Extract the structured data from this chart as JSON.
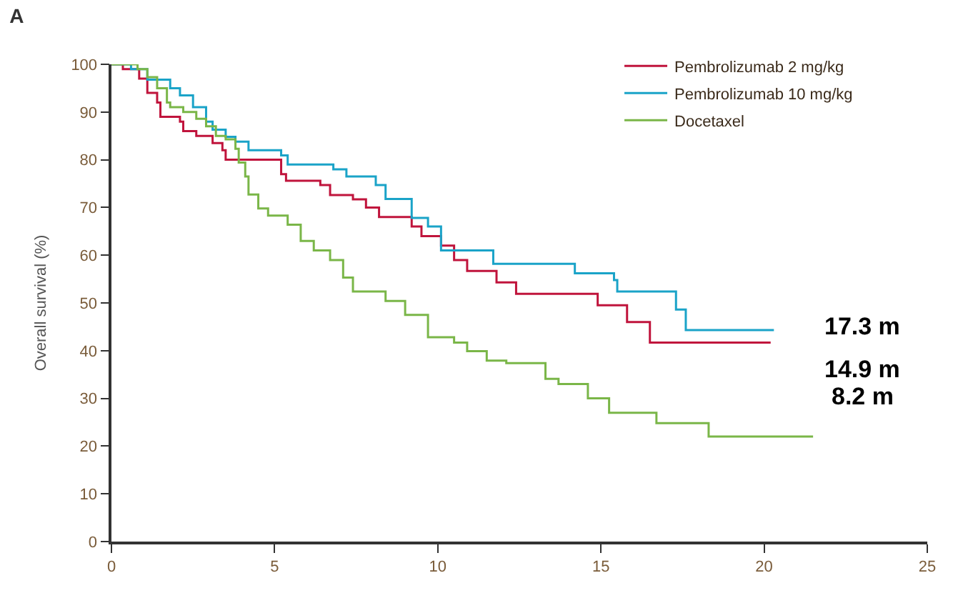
{
  "chart_data": {
    "type": "step",
    "title": "A",
    "ylabel": "Overall survival (%)",
    "xlim": [
      0,
      25
    ],
    "xticks": [
      0,
      5,
      10,
      15,
      20,
      25
    ],
    "ylim": [
      0,
      100
    ],
    "yticks": [
      0,
      10,
      20,
      30,
      40,
      50,
      60,
      70,
      80,
      90,
      100
    ],
    "legend": "top right",
    "marker": "none",
    "line_style": "solid",
    "series": [
      {
        "name": "Pembrolizumab 2 mg/kg",
        "color": "#c0143c",
        "x": [
          0,
          0.35,
          0.85,
          1.1,
          1.4,
          1.5,
          2.1,
          2.2,
          2.6,
          3.1,
          3.4,
          3.5,
          5.2,
          5.35,
          6.4,
          6.7,
          7.4,
          7.8,
          8.2,
          9.2,
          9.5,
          10.1,
          10.5,
          10.9,
          11.8,
          12.4,
          14.9,
          15.8,
          16.5,
          20.2
        ],
        "values": [
          100,
          99,
          97,
          94,
          92,
          89,
          88,
          86,
          85,
          83.5,
          82,
          80,
          77,
          75.6,
          74.7,
          72.6,
          71.7,
          70,
          68,
          66,
          64,
          62,
          59,
          56.7,
          54.3,
          51.9,
          49.5,
          46,
          41.7,
          41.7
        ]
      },
      {
        "name": "Pembrolizumab 10 mg/kg",
        "color": "#1aa3c8",
        "x": [
          0,
          0.6,
          1.1,
          1.8,
          2.1,
          2.5,
          2.9,
          3.1,
          3.5,
          3.8,
          4.2,
          5.2,
          5.4,
          6.8,
          7.2,
          8.1,
          8.4,
          9.2,
          9.7,
          10.1,
          11.7,
          14.2,
          15.4,
          15.5,
          17.3,
          17.6,
          20.3
        ],
        "values": [
          100,
          99,
          96.8,
          95,
          93.5,
          91,
          88,
          86.3,
          84.8,
          83.8,
          82,
          80.9,
          79,
          78,
          76.5,
          74.7,
          71.8,
          67.8,
          66,
          61,
          58.2,
          56.2,
          54.8,
          52.4,
          48.6,
          44.3,
          44.3
        ]
      },
      {
        "name": "Docetaxel",
        "color": "#7ab648",
        "x": [
          0,
          0.8,
          1.1,
          1.4,
          1.7,
          1.8,
          2.2,
          2.6,
          2.9,
          3.2,
          3.5,
          3.8,
          3.9,
          4.1,
          4.2,
          4.5,
          4.8,
          5.4,
          5.8,
          6.2,
          6.7,
          7.1,
          7.4,
          8.4,
          9.0,
          9.7,
          10.5,
          10.9,
          11.5,
          12.1,
          13.3,
          13.7,
          14.6,
          15.25,
          16.7,
          18.3,
          21.5
        ],
        "values": [
          100,
          99,
          97.3,
          95,
          92,
          91,
          90,
          88.6,
          87,
          85,
          84.3,
          82.3,
          79.4,
          76.5,
          72.7,
          69.8,
          68.3,
          66.4,
          63,
          61,
          59,
          55.3,
          52.4,
          50.4,
          47.5,
          42.8,
          41.7,
          39.9,
          37.9,
          37.4,
          34.1,
          33,
          30,
          27,
          24.8,
          22,
          22
        ]
      }
    ],
    "annotations": [
      "17.3 m",
      "14.9 m",
      "8.2 m"
    ]
  }
}
